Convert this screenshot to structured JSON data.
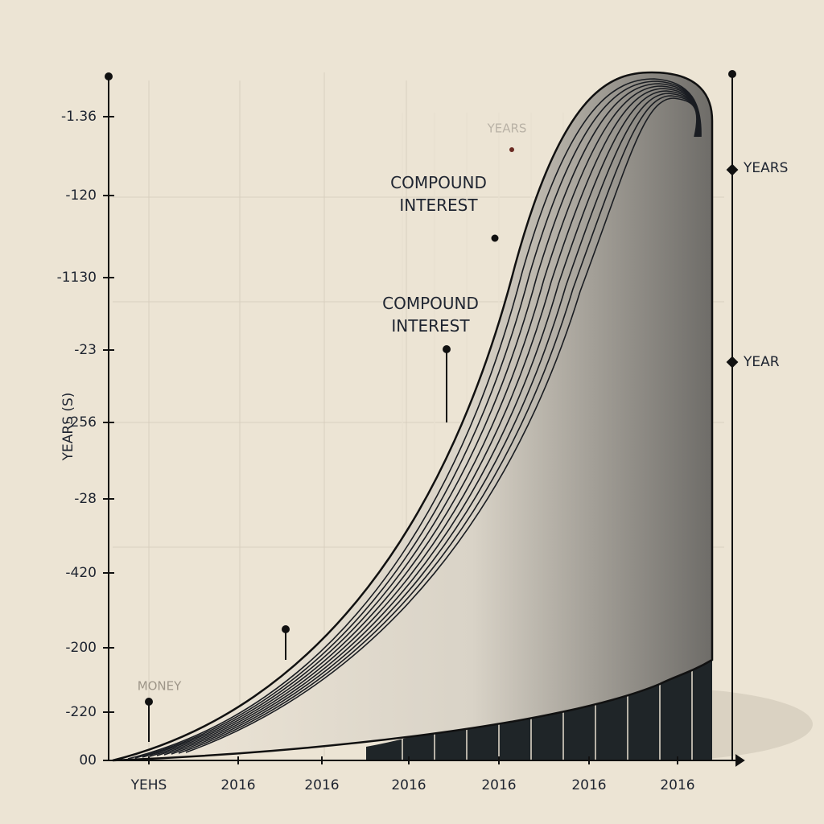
{
  "left_axis_labels": [
    "-1.36",
    "-120",
    "-1130",
    "-23",
    "-256",
    "-28",
    "-420",
    "-200",
    "-220",
    "00"
  ],
  "left_axis_title": "YEARS (S)",
  "x_axis_labels": [
    "YEHS",
    "2016",
    "2016",
    "2016",
    "2016",
    "2016",
    "2016"
  ],
  "right_axis_labels": [
    "YEARS",
    "YEAR"
  ],
  "annotations": [
    "COMPOUND INTEREST",
    "COMPOUND INTEREST",
    "YEARS",
    "MONEY"
  ]
}
